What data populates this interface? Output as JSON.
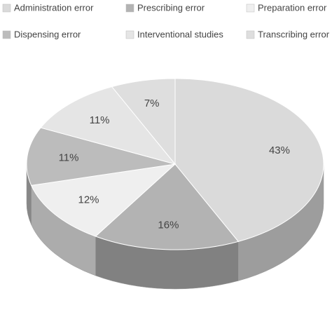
{
  "chart_data": {
    "type": "pie",
    "categories": [
      "Administration error",
      "Prescribing error",
      "Preparation error",
      "Dispensing error",
      "Interventional studies",
      "Transcribing error"
    ],
    "values": [
      43,
      16,
      12,
      11,
      11,
      7
    ],
    "value_labels": [
      "43%",
      "16%",
      "12%",
      "11%",
      "11%",
      "7%"
    ],
    "colors": [
      "#dadada",
      "#b3b3b3",
      "#efefef",
      "#bcbcbc",
      "#e5e5e5",
      "#dedede"
    ]
  }
}
